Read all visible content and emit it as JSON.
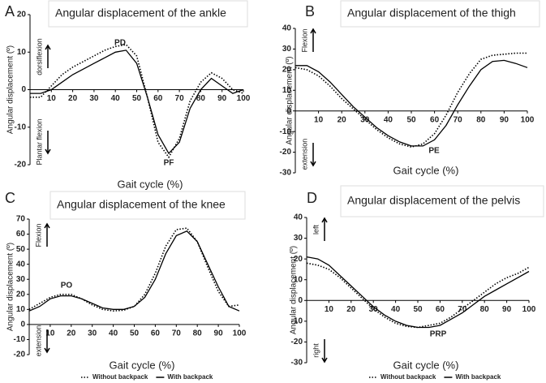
{
  "chart_data": [
    {
      "type": "line",
      "letter": "A",
      "title": "Angular displacement of the ankle",
      "x_label": "Gait cycle (%)",
      "y_label": "Angular displacement (º)",
      "annotations": [
        "PD",
        "PF"
      ],
      "axis_notes": [
        "dorsiflexion",
        "Plantar flexion"
      ],
      "x": [
        0,
        5,
        10,
        15,
        20,
        25,
        30,
        35,
        40,
        45,
        50,
        55,
        60,
        65,
        70,
        75,
        80,
        85,
        90,
        95,
        100
      ],
      "xlim": [
        0,
        100
      ],
      "xticks": [
        10,
        20,
        30,
        40,
        50,
        60,
        70,
        80,
        90,
        100
      ],
      "ylim": [
        -20,
        20
      ],
      "yticks": [
        -20,
        -10,
        0,
        10,
        20
      ],
      "series": [
        {
          "style": "dotted",
          "color": "#000000",
          "values": [
            -2,
            -2,
            1,
            4,
            6,
            7.5,
            9,
            10.5,
            11.5,
            12,
            9,
            -2,
            -14,
            -18,
            -13,
            -3,
            2,
            4.5,
            3,
            0,
            -1
          ]
        },
        {
          "style": "solid",
          "color": "#000000",
          "values": [
            -1,
            -1,
            0,
            2,
            4,
            5.5,
            7,
            8.5,
            10,
            10.5,
            7,
            -2,
            -12,
            -17,
            -14,
            -5,
            0,
            3,
            1,
            -1,
            0
          ]
        }
      ]
    },
    {
      "type": "line",
      "letter": "B",
      "title": "Angular displacement of the thigh",
      "x_label": "Gait cycle (%)",
      "y_label": "Angular displacement (º)",
      "annotations": [
        "PE"
      ],
      "axis_notes": [
        "Flexion",
        "extension"
      ],
      "x": [
        0,
        5,
        10,
        15,
        20,
        25,
        30,
        35,
        40,
        45,
        50,
        55,
        60,
        65,
        70,
        75,
        80,
        85,
        90,
        95,
        100
      ],
      "xlim": [
        0,
        100
      ],
      "xticks": [
        10,
        20,
        30,
        40,
        50,
        60,
        70,
        80,
        90,
        100
      ],
      "ylim": [
        -30,
        40
      ],
      "yticks": [
        -30,
        -20,
        -10,
        0,
        10,
        20,
        30,
        40
      ],
      "series": [
        {
          "style": "dotted",
          "color": "#000000",
          "values": [
            21,
            20,
            17,
            12,
            6,
            1,
            -4,
            -9,
            -13,
            -16,
            -17.5,
            -16,
            -11,
            -2,
            9,
            18,
            25,
            27,
            27.5,
            28,
            28
          ]
        },
        {
          "style": "solid",
          "color": "#000000",
          "values": [
            22,
            22,
            19,
            14,
            8,
            2,
            -3,
            -8,
            -12,
            -15,
            -17,
            -17,
            -14,
            -7,
            3,
            12,
            20,
            24,
            24.5,
            23,
            21
          ]
        }
      ]
    },
    {
      "type": "line",
      "letter": "C",
      "title": "Angular displacement of the knee",
      "x_label": "Gait cycle (%)",
      "y_label": "Angular displacement (º)",
      "annotations": [
        "PO"
      ],
      "axis_notes": [
        "Flexion",
        "extension"
      ],
      "x": [
        0,
        5,
        10,
        15,
        20,
        25,
        30,
        35,
        40,
        45,
        50,
        55,
        60,
        65,
        70,
        75,
        80,
        85,
        90,
        95,
        100
      ],
      "xlim": [
        0,
        100
      ],
      "xticks": [
        10,
        20,
        30,
        40,
        50,
        60,
        70,
        80,
        90,
        100
      ],
      "ylim": [
        -20,
        70
      ],
      "yticks": [
        -20,
        -10,
        0,
        10,
        20,
        30,
        40,
        50,
        60,
        70
      ],
      "series": [
        {
          "name": "Without backpack",
          "style": "dotted",
          "color": "#000000",
          "values": [
            10,
            14,
            18,
            20,
            20,
            17,
            13,
            10,
            9,
            9.5,
            12,
            20,
            34,
            52,
            63,
            64,
            55,
            38,
            22,
            12,
            13
          ]
        },
        {
          "name": "With backpack",
          "style": "solid",
          "color": "#000000",
          "values": [
            9,
            12,
            17,
            19,
            19,
            17,
            14,
            11,
            10,
            10,
            12,
            18,
            30,
            47,
            59,
            62,
            55,
            40,
            25,
            12,
            9
          ]
        }
      ]
    },
    {
      "type": "line",
      "letter": "D",
      "title": "Angular displacement of the pelvis",
      "x_label": "Gait cycle (%)",
      "y_label": "Angular displacement (º)",
      "annotations": [
        "PRP"
      ],
      "axis_notes": [
        "left",
        "right"
      ],
      "x": [
        0,
        5,
        10,
        15,
        20,
        25,
        30,
        35,
        40,
        45,
        50,
        55,
        60,
        65,
        70,
        75,
        80,
        85,
        90,
        95,
        100
      ],
      "xlim": [
        0,
        100
      ],
      "xticks": [
        10,
        20,
        30,
        40,
        50,
        60,
        70,
        80,
        90,
        100
      ],
      "ylim": [
        -30,
        40
      ],
      "yticks": [
        -30,
        -20,
        -10,
        0,
        10,
        20,
        30,
        40
      ],
      "series": [
        {
          "name": "Without backpack",
          "style": "dotted",
          "color": "#000000",
          "values": [
            18,
            17,
            15,
            11,
            6,
            1,
            -4,
            -8,
            -11,
            -12.5,
            -13,
            -12,
            -11,
            -8,
            -4,
            0,
            4,
            8,
            11,
            13,
            16
          ]
        },
        {
          "name": "With backpack",
          "style": "solid",
          "color": "#000000",
          "values": [
            21,
            20,
            17,
            12,
            7,
            2,
            -3,
            -7,
            -10,
            -12,
            -13,
            -13,
            -12,
            -9,
            -6,
            -2,
            2,
            5,
            8,
            11,
            14
          ]
        }
      ]
    }
  ]
}
